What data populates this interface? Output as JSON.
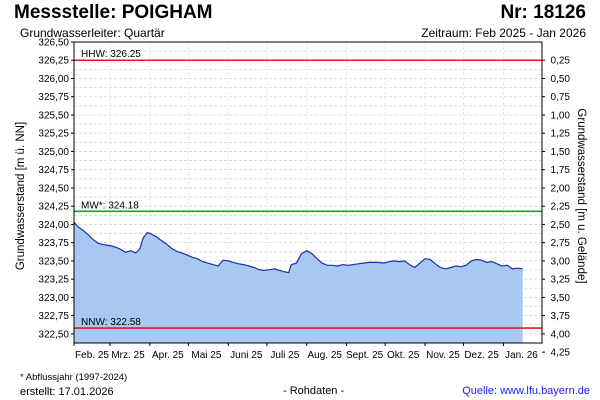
{
  "header": {
    "title": "Messstelle: POIGHAM",
    "number": "Nr: 18126",
    "aquifer": "Grundwasserleiter: Quartär",
    "period": "Zeitraum: Feb 2025 - Jan 2026"
  },
  "footer": {
    "note": "* Abflussjahr (1997-2024)",
    "created": "erstellt:  17.01.2026",
    "center": "- Rohdaten -",
    "source": "Quelle:  www.lfu.bayern.de"
  },
  "colors": {
    "fill": "#a8c7f2",
    "line": "#1f2fa8",
    "hhw": "#e01b1b",
    "mw": "#17a317",
    "nnw": "#e01b1b",
    "grid": "#d6d6d6"
  },
  "chart_data": {
    "type": "area",
    "ylabel_left": "Grundwasserstand [m ü. NN]",
    "ylabel_right": "Grundwasserstand [m u. Gelände]",
    "ylim": [
      322.375,
      326.5
    ],
    "left_ticks": [
      "326,50",
      "326,25",
      "326,00",
      "325,75",
      "325,50",
      "325,25",
      "325,00",
      "324,75",
      "324,50",
      "324,25",
      "324,00",
      "323,75",
      "323,50",
      "323,25",
      "323,00",
      "322,75",
      "322,50"
    ],
    "left_tick_values": [
      326.5,
      326.25,
      326.0,
      325.75,
      325.5,
      325.25,
      325.0,
      324.75,
      324.5,
      324.25,
      324.0,
      323.75,
      323.5,
      323.25,
      323.0,
      322.75,
      322.5
    ],
    "right_ticks": [
      "0,25",
      "0,50",
      "0,75",
      "1,00",
      "1,25",
      "1,50",
      "1,75",
      "2,00",
      "2,25",
      "2,50",
      "2,75",
      "3,00",
      "3,25",
      "3,50",
      "3,75",
      "4,00",
      "4,25"
    ],
    "right_tick_values": [
      0.25,
      0.5,
      0.75,
      1.0,
      1.25,
      1.5,
      1.75,
      2.0,
      2.25,
      2.5,
      2.75,
      3.0,
      3.25,
      3.5,
      3.75,
      4.0,
      4.25
    ],
    "right_axis_zero": 326.5,
    "x_months": [
      "Feb. 25",
      "Mrz. 25",
      "Apr. 25",
      "Mai 25",
      "Juni 25",
      "Juli 25",
      "Aug. 25",
      "Sept. 25",
      "Okt. 25",
      "Nov. 25",
      "Dez. 25",
      "Jan. 26"
    ],
    "x_month_starts": [
      "2025-02-01",
      "2025-03-01",
      "2025-04-01",
      "2025-05-01",
      "2025-06-01",
      "2025-07-01",
      "2025-08-01",
      "2025-09-01",
      "2025-10-01",
      "2025-11-01",
      "2025-12-01",
      "2026-01-01"
    ],
    "xlim": [
      "2025-02-01",
      "2026-01-31"
    ],
    "reference_lines": [
      {
        "label": "HHW: 326.25",
        "value": 326.25,
        "color": "#e01b1b"
      },
      {
        "label": "MW*: 324.18",
        "value": 324.18,
        "color": "#17a317"
      },
      {
        "label": "NNW: 322.58",
        "value": 322.58,
        "color": "#e01b1b"
      }
    ],
    "series": [
      {
        "points": [
          [
            "2025-02-01",
            324.03
          ],
          [
            "2025-02-04",
            323.97
          ],
          [
            "2025-02-08",
            323.92
          ],
          [
            "2025-02-12",
            323.86
          ],
          [
            "2025-02-16",
            323.79
          ],
          [
            "2025-02-20",
            323.74
          ],
          [
            "2025-02-25",
            323.72
          ],
          [
            "2025-03-01",
            323.71
          ],
          [
            "2025-03-05",
            323.69
          ],
          [
            "2025-03-09",
            323.66
          ],
          [
            "2025-03-13",
            323.62
          ],
          [
            "2025-03-17",
            323.64
          ],
          [
            "2025-03-21",
            323.61
          ],
          [
            "2025-03-24",
            323.66
          ],
          [
            "2025-03-27",
            323.82
          ],
          [
            "2025-03-30",
            323.89
          ],
          [
            "2025-04-02",
            323.87
          ],
          [
            "2025-04-06",
            323.83
          ],
          [
            "2025-04-10",
            323.78
          ],
          [
            "2025-04-14",
            323.73
          ],
          [
            "2025-04-18",
            323.67
          ],
          [
            "2025-04-22",
            323.63
          ],
          [
            "2025-04-26",
            323.61
          ],
          [
            "2025-04-30",
            323.58
          ],
          [
            "2025-05-04",
            323.55
          ],
          [
            "2025-05-08",
            323.53
          ],
          [
            "2025-05-12",
            323.49
          ],
          [
            "2025-05-16",
            323.47
          ],
          [
            "2025-05-20",
            323.45
          ],
          [
            "2025-05-24",
            323.43
          ],
          [
            "2025-05-28",
            323.51
          ],
          [
            "2025-06-01",
            323.5
          ],
          [
            "2025-06-05",
            323.48
          ],
          [
            "2025-06-09",
            323.46
          ],
          [
            "2025-06-13",
            323.45
          ],
          [
            "2025-06-17",
            323.43
          ],
          [
            "2025-06-21",
            323.41
          ],
          [
            "2025-06-25",
            323.38
          ],
          [
            "2025-06-29",
            323.37
          ],
          [
            "2025-07-03",
            323.38
          ],
          [
            "2025-07-07",
            323.39
          ],
          [
            "2025-07-11",
            323.37
          ],
          [
            "2025-07-15",
            323.35
          ],
          [
            "2025-07-18",
            323.34
          ],
          [
            "2025-07-20",
            323.45
          ],
          [
            "2025-07-24",
            323.47
          ],
          [
            "2025-07-28",
            323.6
          ],
          [
            "2025-08-01",
            323.64
          ],
          [
            "2025-08-05",
            323.6
          ],
          [
            "2025-08-09",
            323.53
          ],
          [
            "2025-08-13",
            323.47
          ],
          [
            "2025-08-17",
            323.44
          ],
          [
            "2025-08-21",
            323.44
          ],
          [
            "2025-08-25",
            323.43
          ],
          [
            "2025-08-29",
            323.45
          ],
          [
            "2025-09-02",
            323.44
          ],
          [
            "2025-09-06",
            323.45
          ],
          [
            "2025-09-10",
            323.46
          ],
          [
            "2025-09-14",
            323.47
          ],
          [
            "2025-09-18",
            323.48
          ],
          [
            "2025-09-22",
            323.48
          ],
          [
            "2025-09-26",
            323.48
          ],
          [
            "2025-09-30",
            323.47
          ],
          [
            "2025-10-04",
            323.49
          ],
          [
            "2025-10-08",
            323.5
          ],
          [
            "2025-10-12",
            323.49
          ],
          [
            "2025-10-16",
            323.5
          ],
          [
            "2025-10-20",
            323.45
          ],
          [
            "2025-10-24",
            323.41
          ],
          [
            "2025-10-28",
            323.47
          ],
          [
            "2025-11-01",
            323.53
          ],
          [
            "2025-11-05",
            323.52
          ],
          [
            "2025-11-09",
            323.46
          ],
          [
            "2025-11-13",
            323.41
          ],
          [
            "2025-11-17",
            323.39
          ],
          [
            "2025-11-21",
            323.41
          ],
          [
            "2025-11-25",
            323.43
          ],
          [
            "2025-11-29",
            323.42
          ],
          [
            "2025-12-03",
            323.44
          ],
          [
            "2025-12-07",
            323.5
          ],
          [
            "2025-12-11",
            323.52
          ],
          [
            "2025-12-15",
            323.51
          ],
          [
            "2025-12-19",
            323.48
          ],
          [
            "2025-12-23",
            323.49
          ],
          [
            "2025-12-27",
            323.46
          ],
          [
            "2025-12-31",
            323.43
          ],
          [
            "2026-01-04",
            323.44
          ],
          [
            "2026-01-08",
            323.39
          ],
          [
            "2026-01-12",
            323.4
          ],
          [
            "2026-01-16",
            323.39
          ]
        ]
      }
    ]
  }
}
